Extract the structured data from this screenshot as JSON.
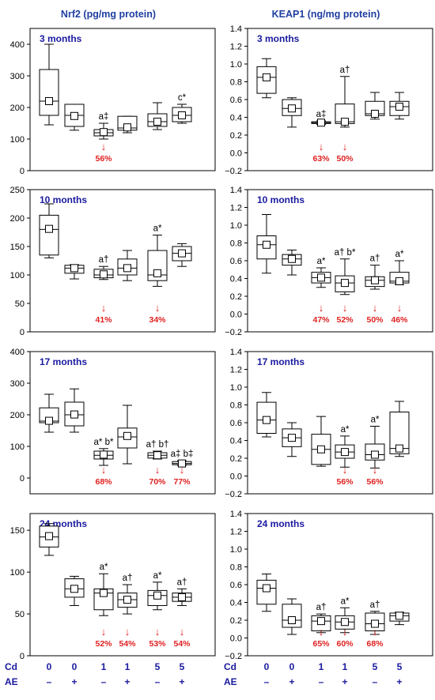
{
  "columns": [
    {
      "title": "Nrf2 (pg/mg protein)"
    },
    {
      "title": "KEAP1 (ng/mg protein)"
    }
  ],
  "xaxis": {
    "cd_label": "Cd",
    "ae_label": "AE",
    "cd_values": [
      "0",
      "0",
      "1",
      "1",
      "5",
      "5"
    ],
    "ae_values": [
      "–",
      "+",
      "–",
      "+",
      "–",
      "+"
    ]
  },
  "colors": {
    "title": "#1f3fa0",
    "panel_label": "#1a1aa0",
    "decrease": "#e02020",
    "box": "#000000"
  },
  "chart_data": [
    {
      "type": "box",
      "column": 0,
      "row": 0,
      "title": "3 months",
      "ylim": [
        0,
        450
      ],
      "yticks": [
        0,
        100,
        200,
        300,
        400
      ],
      "boxes": [
        {
          "min": 145,
          "q1": 175,
          "median": 220,
          "q3": 320,
          "max": 400,
          "mean": 220,
          "annotation": "",
          "decrease": ""
        },
        {
          "min": 128,
          "q1": 140,
          "median": 175,
          "q3": 210,
          "max": 210,
          "mean": 173,
          "annotation": "",
          "decrease": ""
        },
        {
          "min": 100,
          "q1": 110,
          "median": 120,
          "q3": 130,
          "max": 150,
          "mean": 122,
          "annotation": "a‡",
          "decrease": "56%"
        },
        {
          "min": 120,
          "q1": 128,
          "median": 135,
          "q3": 172,
          "max": 172,
          "mean": 137,
          "annotation": "",
          "decrease": ""
        },
        {
          "min": 130,
          "q1": 140,
          "median": 155,
          "q3": 180,
          "max": 215,
          "mean": 155,
          "annotation": "",
          "decrease": ""
        },
        {
          "min": 150,
          "q1": 155,
          "median": 175,
          "q3": 200,
          "max": 210,
          "mean": 175,
          "annotation": "c*",
          "decrease": ""
        }
      ]
    },
    {
      "type": "box",
      "column": 0,
      "row": 1,
      "title": "10 months",
      "ylim": [
        0,
        250
      ],
      "yticks": [
        0,
        50,
        100,
        150,
        200,
        250
      ],
      "boxes": [
        {
          "min": 130,
          "q1": 135,
          "median": 180,
          "q3": 205,
          "max": 225,
          "mean": 181,
          "annotation": "",
          "decrease": ""
        },
        {
          "min": 93,
          "q1": 103,
          "median": 112,
          "q3": 117,
          "max": 118,
          "mean": 112,
          "annotation": "",
          "decrease": ""
        },
        {
          "min": 92,
          "q1": 95,
          "median": 100,
          "q3": 110,
          "max": 115,
          "mean": 101,
          "annotation": "a†",
          "decrease": "41%"
        },
        {
          "min": 90,
          "q1": 100,
          "median": 112,
          "q3": 128,
          "max": 143,
          "mean": 112,
          "annotation": "",
          "decrease": ""
        },
        {
          "min": 80,
          "q1": 90,
          "median": 100,
          "q3": 143,
          "max": 170,
          "mean": 103,
          "annotation": "a*",
          "decrease": "34%"
        },
        {
          "min": 115,
          "q1": 125,
          "median": 138,
          "q3": 150,
          "max": 155,
          "mean": 138,
          "annotation": "",
          "decrease": ""
        }
      ]
    },
    {
      "type": "box",
      "column": 0,
      "row": 2,
      "title": "17 months",
      "ylim": [
        -50,
        400
      ],
      "yticks": [
        0,
        100,
        200,
        300,
        400
      ],
      "boxes": [
        {
          "min": 145,
          "q1": 175,
          "median": 180,
          "q3": 222,
          "max": 265,
          "mean": 181,
          "annotation": "",
          "decrease": ""
        },
        {
          "min": 145,
          "q1": 165,
          "median": 200,
          "q3": 240,
          "max": 282,
          "mean": 201,
          "annotation": "",
          "decrease": ""
        },
        {
          "min": 40,
          "q1": 60,
          "median": 72,
          "q3": 85,
          "max": 93,
          "mean": 74,
          "annotation": "a* b*",
          "decrease": "68%"
        },
        {
          "min": 45,
          "q1": 95,
          "median": 130,
          "q3": 158,
          "max": 230,
          "mean": 133,
          "annotation": "",
          "decrease": ""
        },
        {
          "min": 60,
          "q1": 63,
          "median": 72,
          "q3": 80,
          "max": 85,
          "mean": 72,
          "annotation": "a† b†",
          "decrease": "70%"
        },
        {
          "min": 40,
          "q1": 42,
          "median": 46,
          "q3": 52,
          "max": 55,
          "mean": 46,
          "annotation": "a‡ b‡",
          "decrease": "77%"
        }
      ]
    },
    {
      "type": "box",
      "column": 0,
      "row": 3,
      "title": "24 months",
      "ylim": [
        0,
        170
      ],
      "yticks": [
        0,
        50,
        100,
        150
      ],
      "boxes": [
        {
          "min": 120,
          "q1": 130,
          "median": 142,
          "q3": 155,
          "max": 158,
          "mean": 143,
          "annotation": "",
          "decrease": ""
        },
        {
          "min": 60,
          "q1": 70,
          "median": 80,
          "q3": 92,
          "max": 95,
          "mean": 80,
          "annotation": "",
          "decrease": ""
        },
        {
          "min": 48,
          "q1": 55,
          "median": 75,
          "q3": 80,
          "max": 98,
          "mean": 75,
          "annotation": "a*",
          "decrease": "52%"
        },
        {
          "min": 50,
          "q1": 58,
          "median": 67,
          "q3": 75,
          "max": 85,
          "mean": 67,
          "annotation": "a†",
          "decrease": "54%"
        },
        {
          "min": 55,
          "q1": 60,
          "median": 72,
          "q3": 78,
          "max": 88,
          "mean": 72,
          "annotation": "a*",
          "decrease": "53%"
        },
        {
          "min": 60,
          "q1": 65,
          "median": 70,
          "q3": 75,
          "max": 80,
          "mean": 70,
          "annotation": "a†",
          "decrease": "54%"
        }
      ]
    },
    {
      "type": "box",
      "column": 1,
      "row": 0,
      "title": "3 months",
      "ylim": [
        -0.2,
        1.4
      ],
      "yticks": [
        -0.2,
        0,
        0.2,
        0.4,
        0.6,
        0.8,
        1.0,
        1.2,
        1.4
      ],
      "boxes": [
        {
          "min": 0.62,
          "q1": 0.67,
          "median": 0.85,
          "q3": 0.97,
          "max": 1.06,
          "mean": 0.85,
          "annotation": "",
          "decrease": ""
        },
        {
          "min": 0.29,
          "q1": 0.42,
          "median": 0.5,
          "q3": 0.6,
          "max": 0.62,
          "mean": 0.5,
          "annotation": "",
          "decrease": ""
        },
        {
          "min": 0.32,
          "q1": 0.33,
          "median": 0.34,
          "q3": 0.35,
          "max": 0.36,
          "mean": 0.34,
          "annotation": "a‡",
          "decrease": "63%"
        },
        {
          "min": 0.29,
          "q1": 0.33,
          "median": 0.35,
          "q3": 0.55,
          "max": 0.86,
          "mean": 0.35,
          "annotation": "a†",
          "decrease": "50%"
        },
        {
          "min": 0.38,
          "q1": 0.42,
          "median": 0.44,
          "q3": 0.58,
          "max": 0.68,
          "mean": 0.44,
          "annotation": "",
          "decrease": ""
        },
        {
          "min": 0.38,
          "q1": 0.42,
          "median": 0.52,
          "q3": 0.58,
          "max": 0.68,
          "mean": 0.52,
          "annotation": "",
          "decrease": ""
        }
      ]
    },
    {
      "type": "box",
      "column": 1,
      "row": 1,
      "title": "10 months",
      "ylim": [
        -0.2,
        1.4
      ],
      "yticks": [
        -0.2,
        0,
        0.2,
        0.4,
        0.6,
        0.8,
        1.0,
        1.2,
        1.4
      ],
      "boxes": [
        {
          "min": 0.46,
          "q1": 0.62,
          "median": 0.78,
          "q3": 0.88,
          "max": 1.12,
          "mean": 0.78,
          "annotation": "",
          "decrease": ""
        },
        {
          "min": 0.44,
          "q1": 0.55,
          "median": 0.62,
          "q3": 0.67,
          "max": 0.72,
          "mean": 0.62,
          "annotation": "",
          "decrease": ""
        },
        {
          "min": 0.3,
          "q1": 0.35,
          "median": 0.41,
          "q3": 0.47,
          "max": 0.52,
          "mean": 0.41,
          "annotation": "a*",
          "decrease": "47%"
        },
        {
          "min": 0.22,
          "q1": 0.25,
          "median": 0.35,
          "q3": 0.43,
          "max": 0.62,
          "mean": 0.35,
          "annotation": "a† b*",
          "decrease": "52%"
        },
        {
          "min": 0.28,
          "q1": 0.31,
          "median": 0.38,
          "q3": 0.42,
          "max": 0.55,
          "mean": 0.38,
          "annotation": "a†",
          "decrease": "50%"
        },
        {
          "min": 0.33,
          "q1": 0.35,
          "median": 0.37,
          "q3": 0.47,
          "max": 0.6,
          "mean": 0.37,
          "annotation": "a*",
          "decrease": "46%"
        }
      ]
    },
    {
      "type": "box",
      "column": 1,
      "row": 2,
      "title": "17 months",
      "ylim": [
        -0.2,
        1.4
      ],
      "yticks": [
        -0.2,
        0,
        0.2,
        0.4,
        0.6,
        0.8,
        1.0,
        1.2,
        1.4
      ],
      "boxes": [
        {
          "min": 0.44,
          "q1": 0.48,
          "median": 0.63,
          "q3": 0.83,
          "max": 0.94,
          "mean": 0.63,
          "annotation": "",
          "decrease": ""
        },
        {
          "min": 0.22,
          "q1": 0.33,
          "median": 0.43,
          "q3": 0.53,
          "max": 0.6,
          "mean": 0.43,
          "annotation": "",
          "decrease": ""
        },
        {
          "min": 0.11,
          "q1": 0.13,
          "median": 0.3,
          "q3": 0.47,
          "max": 0.67,
          "mean": 0.3,
          "annotation": "",
          "decrease": ""
        },
        {
          "min": 0.1,
          "q1": 0.2,
          "median": 0.27,
          "q3": 0.35,
          "max": 0.45,
          "mean": 0.27,
          "annotation": "a*",
          "decrease": "56%"
        },
        {
          "min": 0.09,
          "q1": 0.18,
          "median": 0.24,
          "q3": 0.36,
          "max": 0.56,
          "mean": 0.24,
          "annotation": "a*",
          "decrease": "56%"
        },
        {
          "min": 0.22,
          "q1": 0.25,
          "median": 0.31,
          "q3": 0.72,
          "max": 0.84,
          "mean": 0.31,
          "annotation": "",
          "decrease": ""
        }
      ]
    },
    {
      "type": "box",
      "column": 1,
      "row": 3,
      "title": "24 months",
      "ylim": [
        -0.2,
        1.4
      ],
      "yticks": [
        -0.2,
        0,
        0.2,
        0.4,
        0.6,
        0.8,
        1.0,
        1.2,
        1.4
      ],
      "boxes": [
        {
          "min": 0.3,
          "q1": 0.38,
          "median": 0.56,
          "q3": 0.65,
          "max": 0.72,
          "mean": 0.56,
          "annotation": "",
          "decrease": ""
        },
        {
          "min": 0.04,
          "q1": 0.12,
          "median": 0.2,
          "q3": 0.38,
          "max": 0.44,
          "mean": 0.2,
          "annotation": "",
          "decrease": ""
        },
        {
          "min": 0.06,
          "q1": 0.08,
          "median": 0.19,
          "q3": 0.25,
          "max": 0.27,
          "mean": 0.19,
          "annotation": "a†",
          "decrease": "65%"
        },
        {
          "min": 0.06,
          "q1": 0.1,
          "median": 0.18,
          "q3": 0.25,
          "max": 0.34,
          "mean": 0.18,
          "annotation": "a*",
          "decrease": "60%"
        },
        {
          "min": 0.04,
          "q1": 0.08,
          "median": 0.16,
          "q3": 0.28,
          "max": 0.3,
          "mean": 0.16,
          "annotation": "a†",
          "decrease": "68%"
        },
        {
          "min": 0.15,
          "q1": 0.19,
          "median": 0.25,
          "q3": 0.28,
          "max": 0.29,
          "mean": 0.25,
          "annotation": "",
          "decrease": ""
        }
      ]
    }
  ]
}
